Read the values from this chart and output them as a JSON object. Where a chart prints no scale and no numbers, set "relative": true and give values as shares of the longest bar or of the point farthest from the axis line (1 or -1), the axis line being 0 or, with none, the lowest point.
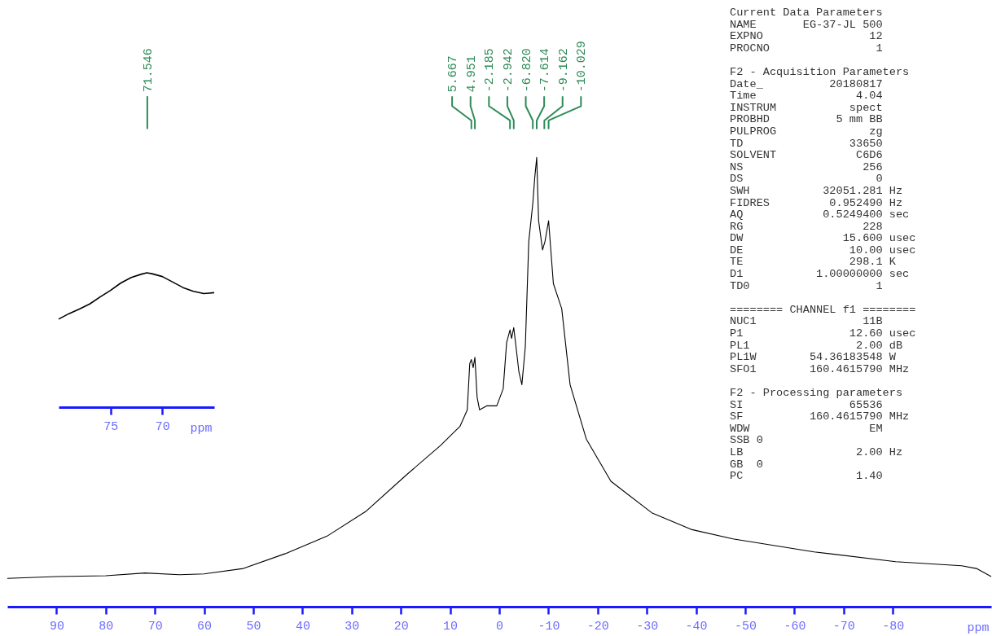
{
  "chart_data": [
    {
      "type": "line",
      "relative": true,
      "xlim": [
        100,
        -100
      ],
      "xticks": [
        90,
        80,
        70,
        60,
        50,
        40,
        30,
        20,
        10,
        0,
        -10,
        -20,
        -30,
        -40,
        -50,
        -60,
        -70,
        -80
      ],
      "xlabel": "ppm",
      "x": [
        100,
        90,
        80,
        72,
        65,
        60,
        52,
        43.5,
        35,
        27,
        18.7,
        12,
        8,
        6.5,
        6,
        5.667,
        5.3,
        4.951,
        4.5,
        4,
        2.5,
        0.5,
        -0.8,
        -1.5,
        -2.185,
        -2.5,
        -2.942,
        -3.4,
        -4,
        -4.6,
        -5.3,
        -6,
        -6.82,
        -7.2,
        -7.614,
        -8,
        -8.8,
        -9.3,
        -10.029,
        -11,
        -12.7,
        -14.4,
        -17.7,
        -22.7,
        -31,
        -39,
        -47.5,
        -64,
        -80.6,
        -94,
        -97,
        -100
      ],
      "series": [
        {
          "color": "#000000",
          "values": [
            0.063,
            0.067,
            0.069,
            0.075,
            0.071,
            0.073,
            0.085,
            0.118,
            0.157,
            0.213,
            0.295,
            0.358,
            0.401,
            0.438,
            0.541,
            0.55,
            0.532,
            0.555,
            0.466,
            0.438,
            0.447,
            0.447,
            0.485,
            0.588,
            0.616,
            0.597,
            0.621,
            0.579,
            0.522,
            0.494,
            0.579,
            0.813,
            0.897,
            0.953,
            1,
            0.859,
            0.794,
            0.813,
            0.859,
            0.719,
            0.663,
            0.494,
            0.373,
            0.279,
            0.209,
            0.172,
            0.151,
            0.122,
            0.1,
            0.091,
            0.085,
            0.067
          ]
        }
      ],
      "annotations": [
        {
          "text": "71.546",
          "x": 71.546
        },
        {
          "text": "5.667",
          "x": 5.667
        },
        {
          "text": "4.951",
          "x": 4.951
        },
        {
          "text": "-2.185",
          "x": -2.185
        },
        {
          "text": "-2.942",
          "x": -2.942
        },
        {
          "text": "-6.820",
          "x": -6.82
        },
        {
          "text": "-7.614",
          "x": -7.614
        },
        {
          "text": "-9.162",
          "x": -9.162
        },
        {
          "text": "-10.029",
          "x": -10.029
        },
        "Current Data Parameters\nNAME       EG-37-JL 500\nEXPNO                12\nPROCNO                1",
        "F2 - Acquisition Parameters\nDate_          20180817\nTime               4.04\nINSTRUM           spect\nPROBHD          5 mm BB\nPULPROG              zg\nTD                33650\nSOLVENT            C6D6\nNS                  256\nDS                    0\nSWH           32051.281 Hz\nFIDRES         0.952490 Hz\nAQ            0.5249400 sec\nRG                  228\nDW               15.600 usec\nDE                10.00 usec\nTE                298.1 K\nD1           1.00000000 sec\nTD0                   1",
        "======== CHANNEL f1 ========\nNUC1                11B\nP1                12.60 usec\nPL1                2.00 dB\nPL1W        54.36183548 W\nSFO1        160.4615790 MHz",
        "F2 - Processing parameters\nSI                65536\nSF          160.4615790 MHz\nWDW                  EM\nSSB 0\nLB                 2.00 Hz\nGB  0\nPC                 1.40"
      ]
    },
    {
      "type": "line",
      "relative": true,
      "xlim": [
        80,
        65
      ],
      "xticks": [
        75,
        70
      ],
      "xlabel": "ppm",
      "x": [
        80,
        79,
        78,
        77,
        76,
        75,
        74,
        73,
        72,
        71.5,
        71,
        70,
        69,
        68,
        67,
        66,
        65
      ],
      "series": [
        {
          "color": "#000000",
          "values": [
            0.655,
            0.696,
            0.73,
            0.768,
            0.82,
            0.869,
            0.924,
            0.965,
            0.99,
            1,
            0.993,
            0.972,
            0.931,
            0.89,
            0.862,
            0.845,
            0.852
          ]
        }
      ]
    }
  ]
}
